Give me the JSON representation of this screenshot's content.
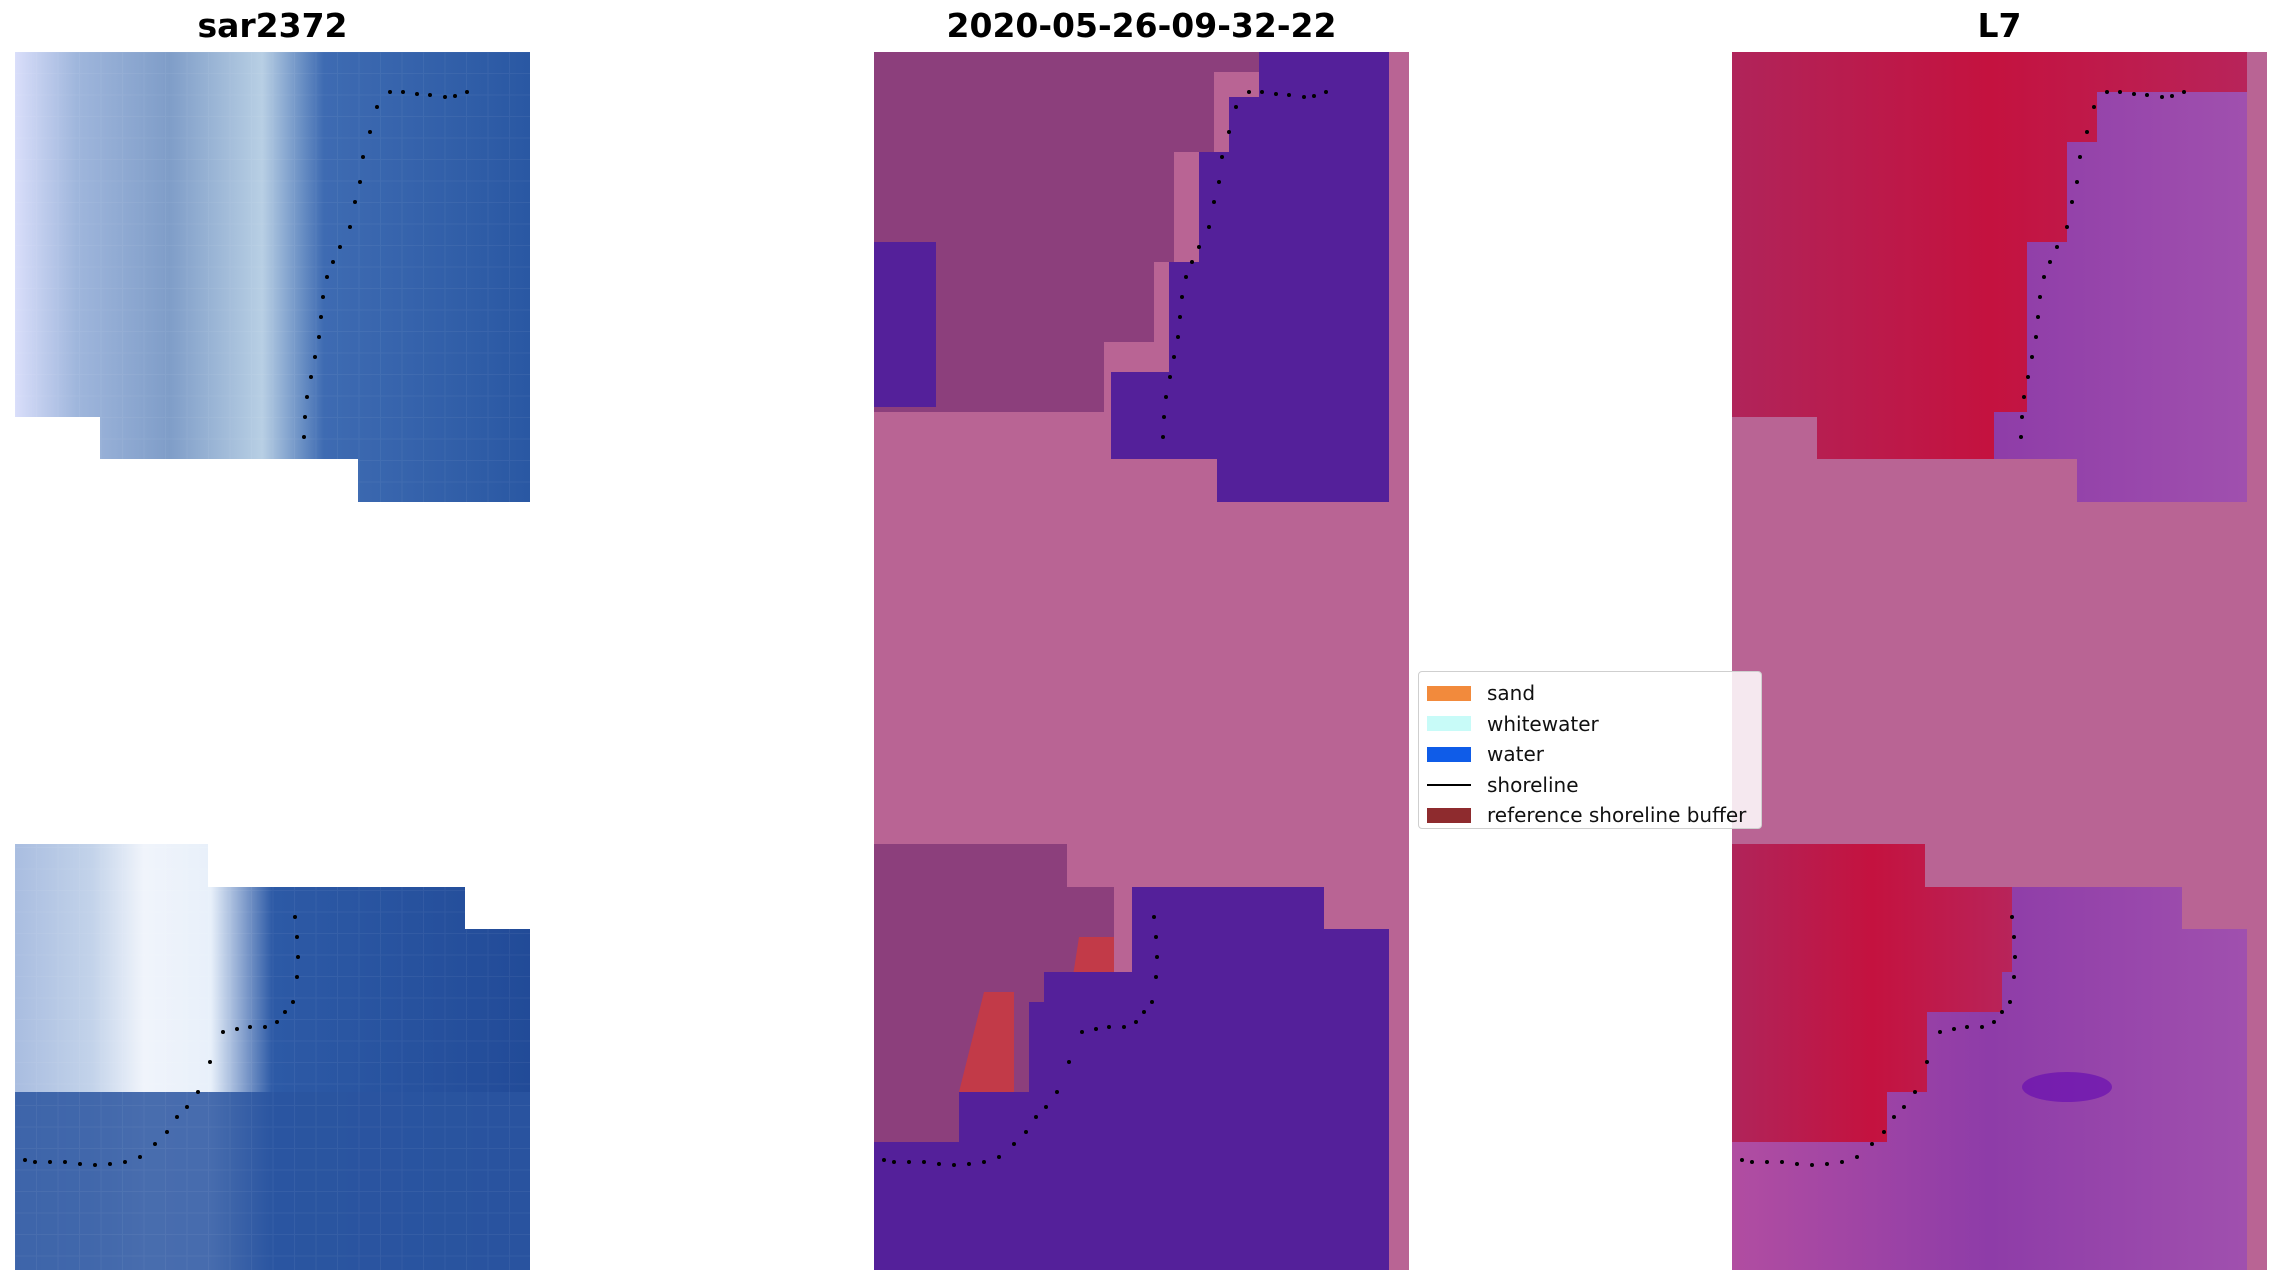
{
  "panels": [
    {
      "title": "sar2372"
    },
    {
      "title": "2020-05-26-09-32-22"
    },
    {
      "title": "L7"
    }
  ],
  "legend": {
    "items": [
      {
        "label": "sand",
        "color": "#f28a3c",
        "kind": "patch"
      },
      {
        "label": "whitewater",
        "color": "#c8fbf8",
        "kind": "patch"
      },
      {
        "label": "water",
        "color": "#0f5ce8",
        "kind": "patch"
      },
      {
        "label": "shoreline",
        "color": "#000000",
        "kind": "line"
      },
      {
        "label": "reference shoreline buffer",
        "color": "#8e2b2e",
        "kind": "patch"
      }
    ]
  },
  "colors": {
    "rgb_water": "#2a55a0",
    "rgb_foam": "#c8d8ee",
    "class_background": "#b96494",
    "class_water": "#54209a",
    "class_land": "#8c3f7c",
    "class_buffer": "#c23a48",
    "index_land": "#c0173f",
    "index_water": "#9c46a8",
    "index_background": "#b96494"
  }
}
